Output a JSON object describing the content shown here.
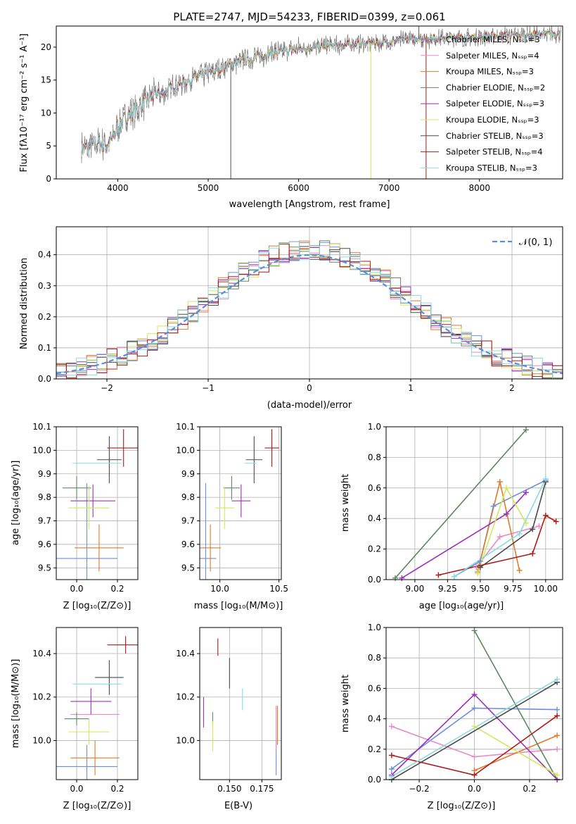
{
  "colors": [
    "#6b8fdb",
    "#e88bc4",
    "#e07a2a",
    "#5b8a60",
    "#9b30b8",
    "#d2e85a",
    "#4a4a4a",
    "#b01818",
    "#8adbe0"
  ],
  "chart_data": [
    {
      "id": "spectrum",
      "type": "line",
      "title": "PLATE=2747, MJD=54233, FIBERID=0399, z=0.061",
      "xlabel": "wavelength [Angstrom, rest frame]",
      "ylabel": "Flux [fλ10⁻¹⁷ erg cm⁻² s⁻¹ A⁻¹]",
      "xlim": [
        3320,
        8920
      ],
      "ylim": [
        0,
        23.2
      ],
      "xticks": [
        4000,
        5000,
        6000,
        7000,
        8000
      ],
      "yticks": [
        0,
        5,
        10,
        15,
        20
      ],
      "grid": false,
      "legend_position": "right",
      "legend": [
        "Chabrier MILES, Nₛₛₚ=3",
        "Salpeter MILES, Nₛₛₚ=4",
        "Kroupa MILES, Nₛₛₚ=3",
        "Chabrier ELODIE, Nₛₛₚ=2",
        "Salpeter ELODIE, Nₛₛₚ=3",
        "Kroupa ELODIE, Nₛₛₚ=3",
        "Chabrier STELIB, Nₛₛₚ=3",
        "Salpeter STELIB, Nₛₛₚ=4",
        "Kroupa STELIB, Nₛₛₚ=3"
      ],
      "continuum": {
        "x": [
          3600,
          3700,
          3800,
          3900,
          4000,
          4100,
          4200,
          4300,
          4400,
          4500,
          4600,
          4800,
          5000,
          5200,
          5400,
          5600,
          5800,
          6000,
          6200,
          6400,
          6600,
          6800,
          7000,
          7200,
          7400,
          7600,
          7800,
          8000,
          8200,
          8400,
          8600,
          8800
        ],
        "y": [
          4.5,
          4.8,
          5.5,
          5.2,
          7.8,
          9.5,
          10.5,
          11.5,
          12.8,
          13.0,
          14.0,
          15.0,
          16.0,
          17.2,
          18.0,
          18.8,
          19.3,
          19.7,
          20.0,
          20.3,
          20.4,
          20.6,
          20.8,
          21.2,
          21.3,
          21.4,
          21.5,
          21.6,
          21.7,
          21.8,
          21.9,
          22.0
        ]
      },
      "data_range": [
        3600,
        8900
      ],
      "spikes": [
        {
          "x": 5250,
          "y": 0
        },
        {
          "x": 6800,
          "y": 0
        },
        {
          "x": 7410,
          "y": 0
        },
        {
          "x": 7330,
          "y": 23.2
        }
      ]
    },
    {
      "id": "residuals",
      "type": "bar",
      "xlabel": "(data-model)/error",
      "ylabel": "Normed distribution",
      "xlim": [
        -2.5,
        2.5
      ],
      "ylim": [
        0,
        0.49
      ],
      "xticks": [
        -2,
        -1,
        0,
        1,
        2
      ],
      "yticks": [
        0.0,
        0.1,
        0.2,
        0.3,
        0.4
      ],
      "grid": true,
      "legend": [
        "𝒩(0, 1)"
      ],
      "legend_position": "top-right",
      "bin_width": 0.1,
      "gaussian": {
        "mean": 0,
        "sigma": 1
      }
    },
    {
      "id": "age-vs-Z",
      "type": "scatter",
      "xlabel": "Z [log₁₀(Z/Z⊙)]",
      "ylabel": "age  [log₁₀(age/yr)]",
      "xlim": [
        -0.1,
        0.3
      ],
      "ylim": [
        9.45,
        10.1
      ],
      "xticks": [
        0.0,
        0.2
      ],
      "yticks": [
        9.5,
        9.6,
        9.7,
        9.8,
        9.9,
        10.0,
        10.1
      ],
      "grid": true,
      "points": [
        {
          "x": 0.05,
          "y": 9.54,
          "xerr": 0.15,
          "yerr": 0.32
        },
        {
          "x": 0.11,
          "y": 9.78,
          "xerr": 0.0,
          "yerr": 0.0
        },
        {
          "x": 0.11,
          "y": 9.585,
          "xerr": 0.12,
          "yerr": 0.1
        },
        {
          "x": 0.0,
          "y": 9.84,
          "xerr": 0.07,
          "yerr": 0.05
        },
        {
          "x": 0.08,
          "y": 9.785,
          "xerr": 0.11,
          "yerr": 0.07
        },
        {
          "x": 0.06,
          "y": 9.755,
          "xerr": 0.1,
          "yerr": 0.09
        },
        {
          "x": 0.16,
          "y": 9.96,
          "xerr": 0.06,
          "yerr": 0.1
        },
        {
          "x": 0.23,
          "y": 10.01,
          "xerr": 0.08,
          "yerr": 0.08
        },
        {
          "x": 0.1,
          "y": 9.945,
          "xerr": 0.12,
          "yerr": 0.0
        }
      ]
    },
    {
      "id": "age-vs-mass",
      "type": "scatter",
      "xlabel": "mass [log₁₀(M/M⊙)]",
      "ylabel": "",
      "xlim": [
        9.83,
        10.52
      ],
      "ylim": [
        9.45,
        10.1
      ],
      "xticks": [
        10.0,
        10.5
      ],
      "yticks": [
        9.5,
        9.6,
        9.7,
        9.8,
        9.9,
        10.0,
        10.1
      ],
      "grid": true,
      "points": [
        {
          "x": 9.88,
          "y": 9.54,
          "xerr": 0.09,
          "yerr": 0.32
        },
        {
          "x": 10.12,
          "y": 9.78,
          "xerr": 0.0,
          "yerr": 0.0
        },
        {
          "x": 9.92,
          "y": 9.585,
          "xerr": 0.09,
          "yerr": 0.1
        },
        {
          "x": 10.1,
          "y": 9.84,
          "xerr": 0.07,
          "yerr": 0.05
        },
        {
          "x": 10.18,
          "y": 9.785,
          "xerr": 0.08,
          "yerr": 0.07
        },
        {
          "x": 10.04,
          "y": 9.755,
          "xerr": 0.08,
          "yerr": 0.09
        },
        {
          "x": 10.29,
          "y": 9.96,
          "xerr": 0.07,
          "yerr": 0.1
        },
        {
          "x": 10.44,
          "y": 10.01,
          "xerr": 0.06,
          "yerr": 0.08
        },
        {
          "x": 10.26,
          "y": 9.945,
          "xerr": 0.05,
          "yerr": 0.0
        }
      ]
    },
    {
      "id": "weight-vs-age",
      "type": "line",
      "xlabel": "age  [log₁₀(age/yr)]",
      "ylabel": "mass weight",
      "xlim": [
        8.78,
        10.13
      ],
      "ylim": [
        0,
        1
      ],
      "xticks": [
        9.0,
        9.25,
        9.5,
        9.75,
        10.0
      ],
      "yticks": [
        0.0,
        0.2,
        0.4,
        0.6,
        0.8,
        1.0
      ],
      "grid": true,
      "series": [
        {
          "x": [
            9.3,
            9.5,
            9.6,
            10.0
          ],
          "y": [
            0.02,
            0.12,
            0.48,
            0.65
          ]
        },
        {
          "x": [
            9.47,
            9.65,
            9.95
          ],
          "y": [
            0.08,
            0.28,
            0.35
          ]
        },
        {
          "x": [
            9.48,
            9.65,
            9.8
          ],
          "y": [
            0.05,
            0.64,
            0.06
          ]
        },
        {
          "x": [
            8.85,
            9.85
          ],
          "y": [
            0.01,
            0.98
          ]
        },
        {
          "x": [
            8.9,
            9.7,
            9.85
          ],
          "y": [
            0.01,
            0.43,
            0.57
          ]
        },
        {
          "x": [
            9.48,
            9.7,
            9.85
          ],
          "y": [
            0.04,
            0.6,
            0.37
          ]
        },
        {
          "x": [
            9.5,
            9.9,
            10.0
          ],
          "y": [
            0.08,
            0.33,
            0.64
          ]
        },
        {
          "x": [
            9.18,
            9.9,
            10.0,
            10.08
          ],
          "y": [
            0.03,
            0.17,
            0.42,
            0.38
          ]
        },
        {
          "x": [
            9.3,
            9.8,
            10.0
          ],
          "y": [
            0.02,
            0.3,
            0.66
          ]
        }
      ]
    },
    {
      "id": "mass-vs-Z",
      "type": "scatter",
      "xlabel": "Z [log₁₀(Z/Z⊙)]",
      "ylabel": "mass [log₁₀(M/M⊙)]",
      "xlim": [
        -0.1,
        0.3
      ],
      "ylim": [
        9.82,
        10.52
      ],
      "xticks": [
        0.0,
        0.2
      ],
      "yticks": [
        10.0,
        10.2,
        10.4
      ],
      "grid": true,
      "points": [
        {
          "x": 0.05,
          "y": 9.88,
          "xerr": 0.15,
          "yerr": 0.1
        },
        {
          "x": 0.09,
          "y": 10.12,
          "xerr": 0.12,
          "yerr": 0.0
        },
        {
          "x": 0.09,
          "y": 9.92,
          "xerr": 0.12,
          "yerr": 0.08
        },
        {
          "x": 0.0,
          "y": 10.1,
          "xerr": 0.06,
          "yerr": 0.03
        },
        {
          "x": 0.07,
          "y": 10.18,
          "xerr": 0.1,
          "yerr": 0.06
        },
        {
          "x": 0.06,
          "y": 10.04,
          "xerr": 0.1,
          "yerr": 0.06
        },
        {
          "x": 0.16,
          "y": 10.29,
          "xerr": 0.07,
          "yerr": 0.08
        },
        {
          "x": 0.24,
          "y": 10.44,
          "xerr": 0.09,
          "yerr": 0.04
        },
        {
          "x": 0.1,
          "y": 10.26,
          "xerr": 0.12,
          "yerr": 0.0
        }
      ]
    },
    {
      "id": "mass-vs-EBV",
      "type": "scatter",
      "xlabel": "E(B-V)",
      "ylabel": "",
      "xlim": [
        0.127,
        0.19
      ],
      "ylim": [
        9.82,
        10.52
      ],
      "xticks": [
        0.15,
        0.175
      ],
      "yticks": [
        10.0,
        10.2,
        10.4
      ],
      "grid": true,
      "points": [
        {
          "x": 0.186,
          "y": 9.92,
          "xerr": 0,
          "yerr": 0.08
        },
        {
          "x": 0.186,
          "y": 10.06,
          "xerr": 0,
          "yerr": 0.1
        },
        {
          "x": 0.187,
          "y": 10.07,
          "xerr": 0,
          "yerr": 0.09
        },
        {
          "x": 0.137,
          "y": 10.1,
          "xerr": 0,
          "yerr": 0.03
        },
        {
          "x": 0.13,
          "y": 10.13,
          "xerr": 0,
          "yerr": 0.07
        },
        {
          "x": 0.137,
          "y": 10.02,
          "xerr": 0,
          "yerr": 0.07
        },
        {
          "x": 0.15,
          "y": 10.31,
          "xerr": 0,
          "yerr": 0.07
        },
        {
          "x": 0.141,
          "y": 10.43,
          "xerr": 0,
          "yerr": 0.04
        },
        {
          "x": 0.16,
          "y": 10.19,
          "xerr": 0,
          "yerr": 0.05
        }
      ]
    },
    {
      "id": "weight-vs-Z",
      "type": "line",
      "xlabel": "Z [log₁₀(Z/Z⊙)]",
      "ylabel": "mass weight",
      "xlim": [
        -0.32,
        0.32
      ],
      "ylim": [
        0,
        1
      ],
      "xticks": [
        -0.2,
        0.0,
        0.2
      ],
      "yticks": [
        0.0,
        0.2,
        0.4,
        0.6,
        0.8,
        1.0
      ],
      "grid": true,
      "series": [
        {
          "x": [
            -0.3,
            0.0,
            0.3
          ],
          "y": [
            0.07,
            0.47,
            0.46
          ]
        },
        {
          "x": [
            -0.3,
            0.0,
            0.3
          ],
          "y": [
            0.35,
            0.15,
            0.2
          ]
        },
        {
          "x": [
            0.0,
            0.3
          ],
          "y": [
            0.06,
            0.29
          ]
        },
        {
          "x": [
            0.0,
            0.3
          ],
          "y": [
            0.98,
            0.0
          ]
        },
        {
          "x": [
            -0.3,
            0.0,
            0.3
          ],
          "y": [
            0.03,
            0.56,
            0.0
          ]
        },
        {
          "x": [
            0.0,
            0.3
          ],
          "y": [
            0.35,
            0.03
          ]
        },
        {
          "x": [
            -0.3,
            0.3
          ],
          "y": [
            0.0,
            0.64
          ]
        },
        {
          "x": [
            -0.3,
            0.0,
            0.3
          ],
          "y": [
            0.16,
            0.03,
            0.42
          ]
        },
        {
          "x": [
            -0.3,
            0.3
          ],
          "y": [
            0.02,
            0.66
          ]
        }
      ]
    }
  ]
}
